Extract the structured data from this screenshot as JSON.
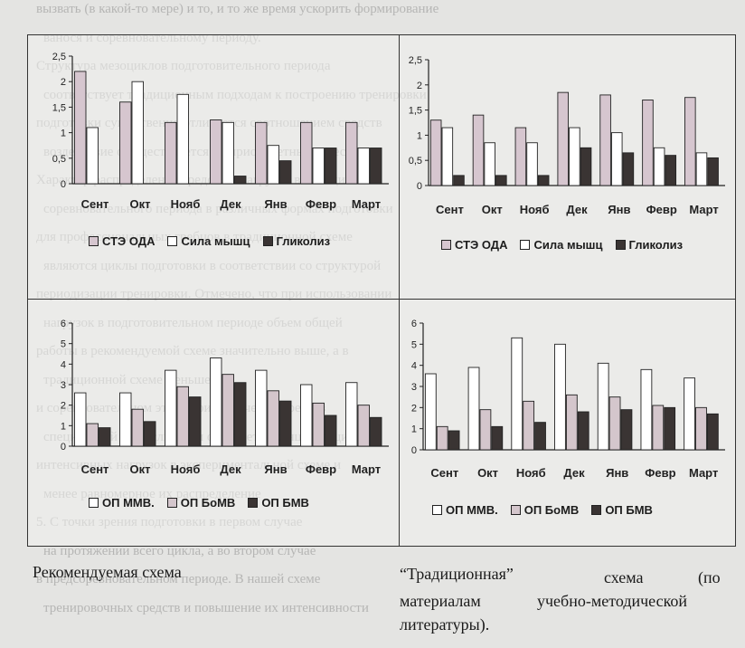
{
  "bleed_text": [
    "вызвать (в какой-то мере) и то, и то же время ускорить формирование",
    "ванося и соревновательному периоду.",
    "Структура мезоциклов подготовительного периода",
    "соответствует традиционным подходам к построению тренировки",
    "подготовки существенно отличается соотношением средств",
    "воздействие осуществляется на приоритетные качества",
    "Характер распределения средств и нагрузок в мезоциклах",
    "соревновательного периода в различных формах подготовки",
    "для профессиональных гребцов в традиционной схеме",
    "являются циклы подготовки в соответствии со структурой",
    "периодизации тренировки. Отмечено, что при использовании",
    "нагрузок в подготовительном периоде объем общей",
    "работы в рекомендуемой схеме значительно выше, а в",
    "традиционной схеме меньше.",
    "и соревновательном этапе при включении средств",
    "специальной выносливости отмечается концентрация",
    "интенсивных нагрузок в экспериментальной схеме и",
    "менее равномерное их распределение",
    "5. С точки зрения подготовки в первом случае",
    "на протяжении всего цикла, а во втором случае",
    "в предсоревновательном периоде. В нашей схеме",
    "тренировочных средств и повышение их интенсивности"
  ],
  "colors": {
    "ste_oda": "#d6c6cf",
    "sila": "#ffffff",
    "glikoliz": "#3a3433",
    "op_mmv": "#ffffff",
    "op_bomv": "#d4c6cc",
    "op_bmv": "#3a3433"
  },
  "chart_data": [
    {
      "type": "bar",
      "categories": [
        "Сент",
        "Окт",
        "Нояб",
        "Дек",
        "Янв",
        "Февр",
        "Март"
      ],
      "ylim": [
        0,
        2.5
      ],
      "yticks": [
        "0",
        "0,5",
        "1",
        "1,5",
        "2",
        "2,5"
      ],
      "ytick_values": [
        0,
        0.5,
        1,
        1.5,
        2,
        2.5
      ],
      "series": [
        {
          "name": "СТЭ ОДА",
          "values": [
            2.2,
            1.6,
            1.2,
            1.25,
            1.2,
            1.2,
            1.2
          ]
        },
        {
          "name": "Сила мышц",
          "values": [
            1.1,
            2.0,
            1.75,
            1.2,
            0.75,
            0.7,
            0.7
          ]
        },
        {
          "name": "Гликолиз",
          "values": [
            0.0,
            0.0,
            0.0,
            0.15,
            0.45,
            0.7,
            0.7
          ]
        }
      ]
    },
    {
      "type": "bar",
      "categories": [
        "Сент",
        "Окт",
        "Нояб",
        "Дек",
        "Янв",
        "Февр",
        "Март"
      ],
      "ylim": [
        0,
        2.5
      ],
      "yticks": [
        "0",
        "0,5",
        "1",
        "1,5",
        "2",
        "2,5"
      ],
      "ytick_values": [
        0,
        0.5,
        1,
        1.5,
        2,
        2.5
      ],
      "series": [
        {
          "name": "СТЭ ОДА",
          "values": [
            1.3,
            1.4,
            1.15,
            1.85,
            1.8,
            1.7,
            1.75
          ]
        },
        {
          "name": "Сила мышц",
          "values": [
            1.15,
            0.85,
            0.85,
            1.15,
            1.05,
            0.75,
            0.65
          ]
        },
        {
          "name": "Гликолиз",
          "values": [
            0.2,
            0.2,
            0.2,
            0.75,
            0.65,
            0.6,
            0.55
          ]
        }
      ]
    },
    {
      "type": "bar",
      "categories": [
        "Сент",
        "Окт",
        "Нояб",
        "Дек",
        "Янв",
        "Февр",
        "Март"
      ],
      "ylim": [
        0,
        6
      ],
      "yticks": [
        "0",
        "1",
        "2",
        "3",
        "4",
        "5",
        "6"
      ],
      "ytick_values": [
        0,
        1,
        2,
        3,
        4,
        5,
        6
      ],
      "series": [
        {
          "name": "ОП ММВ.",
          "values": [
            2.6,
            2.6,
            3.7,
            4.3,
            3.7,
            3.0,
            3.1
          ]
        },
        {
          "name": "ОП БоМВ",
          "values": [
            1.1,
            1.8,
            2.9,
            3.5,
            2.7,
            2.1,
            2.0
          ]
        },
        {
          "name": "ОП БМВ",
          "values": [
            0.9,
            1.2,
            2.4,
            3.1,
            2.2,
            1.5,
            1.4
          ]
        }
      ]
    },
    {
      "type": "bar",
      "categories": [
        "Сент",
        "Окт",
        "Нояб",
        "Дек",
        "Янв",
        "Февр",
        "Март"
      ],
      "ylim": [
        0,
        6
      ],
      "yticks": [
        "0",
        "1",
        "2",
        "3",
        "4",
        "5",
        "6"
      ],
      "ytick_values": [
        0,
        1,
        2,
        3,
        4,
        5,
        6
      ],
      "series": [
        {
          "name": "ОП ММВ.",
          "values": [
            3.6,
            3.9,
            5.3,
            5.0,
            4.1,
            3.8,
            3.4
          ]
        },
        {
          "name": "ОП БоМВ",
          "values": [
            1.1,
            1.9,
            2.3,
            2.6,
            2.5,
            2.1,
            2.0
          ]
        },
        {
          "name": "ОП БМВ",
          "values": [
            0.9,
            1.1,
            1.3,
            1.8,
            1.9,
            2.0,
            1.7
          ]
        }
      ]
    }
  ],
  "legends": [
    {
      "items": [
        "СТЭ ОДА",
        "Сила мышц",
        "Гликолиз"
      ]
    },
    {
      "items": [
        "СТЭ ОДА",
        "Сила мышц",
        "Гликолиз"
      ]
    },
    {
      "items": [
        "ОП ММВ.",
        "ОП БоМВ",
        "ОП БМВ"
      ]
    },
    {
      "items": [
        "ОП ММВ.",
        "ОП БоМВ",
        "ОП БМВ"
      ]
    }
  ],
  "captions": {
    "left": "Рекомендуемая схема",
    "right_line1_a": "“Традиционная”",
    "right_line1_b": "схема",
    "right_line1_c": "(по",
    "right_line2_a": "материалам",
    "right_line2_b": "учебно-методической",
    "right_line3": "литературы)."
  }
}
